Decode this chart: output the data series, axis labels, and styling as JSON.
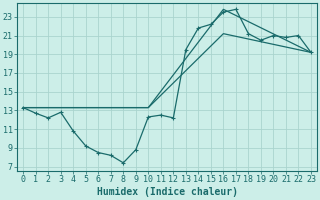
{
  "xlabel": "Humidex (Indice chaleur)",
  "bg_color": "#cceee8",
  "grid_color_major": "#aad4ce",
  "grid_color_minor": "#bde4de",
  "line_color": "#1a6b6b",
  "xlim": [
    -0.5,
    23.5
  ],
  "ylim": [
    6.5,
    24.5
  ],
  "yticks": [
    7,
    9,
    11,
    13,
    15,
    17,
    19,
    21,
    23
  ],
  "xticks": [
    0,
    1,
    2,
    3,
    4,
    5,
    6,
    7,
    8,
    9,
    10,
    11,
    12,
    13,
    14,
    15,
    16,
    17,
    18,
    19,
    20,
    21,
    22,
    23
  ],
  "line1_x": [
    0,
    1,
    2,
    3,
    4,
    5,
    6,
    7,
    8,
    9,
    10,
    11,
    12,
    13,
    14,
    15,
    16,
    17,
    18,
    19,
    20,
    21,
    22,
    23
  ],
  "line1_y": [
    13.3,
    12.7,
    12.2,
    12.8,
    10.8,
    9.2,
    8.5,
    8.2,
    7.4,
    8.8,
    12.3,
    12.5,
    12.2,
    19.5,
    21.8,
    22.2,
    23.5,
    23.8,
    21.2,
    20.5,
    21.0,
    20.8,
    21.0,
    19.2
  ],
  "line2_x": [
    0,
    10,
    16,
    23
  ],
  "line2_y": [
    13.3,
    13.3,
    23.8,
    19.2
  ],
  "line3_x": [
    0,
    10,
    16,
    23
  ],
  "line3_y": [
    13.3,
    13.3,
    21.2,
    19.2
  ],
  "xlabel_fontsize": 7,
  "tick_fontsize": 6
}
